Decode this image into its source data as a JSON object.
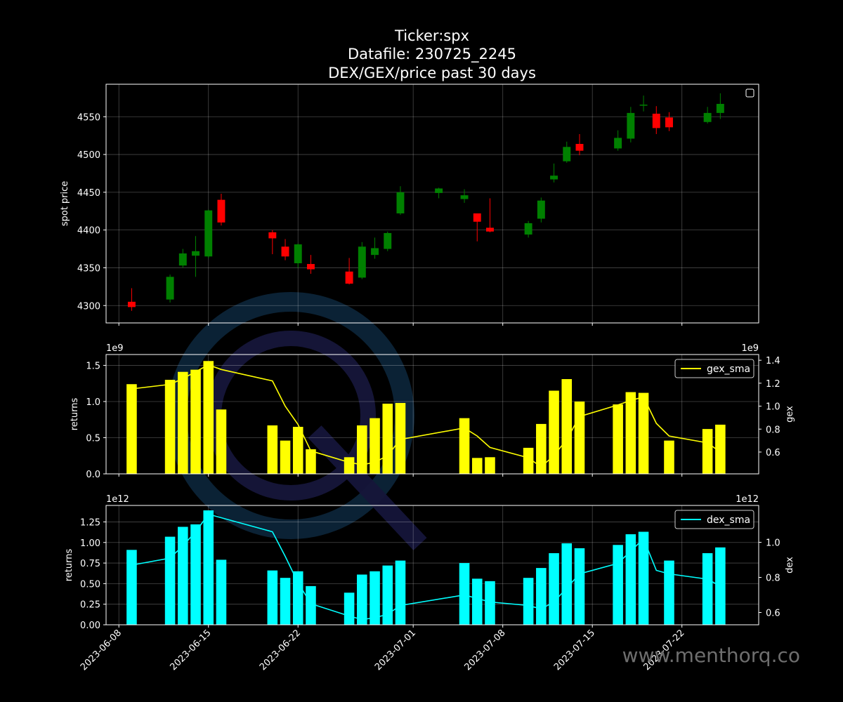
{
  "chart_data": {
    "title_lines": [
      "Ticker:spx",
      "Datafile: 230725_2245",
      "DEX/GEX/price past 30 days"
    ],
    "watermark": "www.menthorq.co",
    "x_ticks": [
      "2023-06-08",
      "2023-06-15",
      "2023-06-22",
      "2023-07-01",
      "2023-07-08",
      "2023-07-15",
      "2023-07-22"
    ],
    "x_domain": [
      "2023-06-07",
      "2023-07-28"
    ],
    "panels": [
      {
        "type": "candlestick",
        "ylabel": "spot price",
        "ylim": [
          4277,
          4593
        ],
        "yticks": [
          4300,
          4350,
          4400,
          4450,
          4500,
          4550
        ],
        "legend": "top-right (empty)",
        "up_color": "#008000",
        "down_color": "#ff0000",
        "candles": [
          {
            "date": "2023-06-09",
            "open": 4305,
            "close": 4298,
            "high": 4323,
            "low": 4293
          },
          {
            "date": "2023-06-12",
            "open": 4308,
            "close": 4338,
            "high": 4341,
            "low": 4304
          },
          {
            "date": "2023-06-13",
            "open": 4353,
            "close": 4369,
            "high": 4375,
            "low": 4350
          },
          {
            "date": "2023-06-14",
            "open": 4366,
            "close": 4372,
            "high": 4392,
            "low": 4338
          },
          {
            "date": "2023-06-15",
            "open": 4365,
            "close": 4426,
            "high": 4427,
            "low": 4363
          },
          {
            "date": "2023-06-16",
            "open": 4440,
            "close": 4410,
            "high": 4448,
            "low": 4406
          },
          {
            "date": "2023-06-20",
            "open": 4397,
            "close": 4389,
            "high": 4400,
            "low": 4368
          },
          {
            "date": "2023-06-21",
            "open": 4378,
            "close": 4365,
            "high": 4388,
            "low": 4360
          },
          {
            "date": "2023-06-22",
            "open": 4356,
            "close": 4381,
            "high": 4382,
            "low": 4350
          },
          {
            "date": "2023-06-23",
            "open": 4355,
            "close": 4348,
            "high": 4367,
            "low": 4342
          },
          {
            "date": "2023-06-26",
            "open": 4345,
            "close": 4329,
            "high": 4363,
            "low": 4328
          },
          {
            "date": "2023-06-27",
            "open": 4337,
            "close": 4378,
            "high": 4384,
            "low": 4335
          },
          {
            "date": "2023-06-28",
            "open": 4367,
            "close": 4376,
            "high": 4390,
            "low": 4362
          },
          {
            "date": "2023-06-29",
            "open": 4375,
            "close": 4396,
            "high": 4398,
            "low": 4372
          },
          {
            "date": "2023-06-30",
            "open": 4422,
            "close": 4450,
            "high": 4458,
            "low": 4420
          },
          {
            "date": "2023-07-03",
            "open": 4449,
            "close": 4455,
            "high": 4456,
            "low": 4442
          },
          {
            "date": "2023-07-05",
            "open": 4441,
            "close": 4446,
            "high": 4454,
            "low": 4436
          },
          {
            "date": "2023-07-06",
            "open": 4422,
            "close": 4411,
            "high": 4422,
            "low": 4385
          },
          {
            "date": "2023-07-07",
            "open": 4403,
            "close": 4398,
            "high": 4442,
            "low": 4397
          },
          {
            "date": "2023-07-10",
            "open": 4394,
            "close": 4409,
            "high": 4412,
            "low": 4390
          },
          {
            "date": "2023-07-11",
            "open": 4415,
            "close": 4439,
            "high": 4443,
            "low": 4410
          },
          {
            "date": "2023-07-12",
            "open": 4467,
            "close": 4472,
            "high": 4488,
            "low": 4463
          },
          {
            "date": "2023-07-13",
            "open": 4491,
            "close": 4510,
            "high": 4517,
            "low": 4489
          },
          {
            "date": "2023-07-14",
            "open": 4514,
            "close": 4505,
            "high": 4527,
            "low": 4499
          },
          {
            "date": "2023-07-17",
            "open": 4508,
            "close": 4522,
            "high": 4532,
            "low": 4505
          },
          {
            "date": "2023-07-18",
            "open": 4521,
            "close": 4555,
            "high": 4563,
            "low": 4516
          },
          {
            "date": "2023-07-19",
            "open": 4565,
            "close": 4566,
            "high": 4578,
            "low": 4557
          },
          {
            "date": "2023-07-20",
            "open": 4554,
            "close": 4535,
            "high": 4564,
            "low": 4527
          },
          {
            "date": "2023-07-21",
            "open": 4549,
            "close": 4536,
            "high": 4556,
            "low": 4531
          },
          {
            "date": "2023-07-24",
            "open": 4543,
            "close": 4555,
            "high": 4563,
            "low": 4541
          },
          {
            "date": "2023-07-25",
            "open": 4555,
            "close": 4567,
            "high": 4581,
            "low": 4547
          }
        ]
      },
      {
        "type": "bar+line",
        "ylabel": "returns",
        "y2label": "gex",
        "exponent_left": "1e9",
        "exponent_right": "1e9",
        "ylim": [
          0,
          1.65
        ],
        "yticks": [
          0.0,
          0.5,
          1.0,
          1.5
        ],
        "y2lim": [
          0.41,
          1.45
        ],
        "y2ticks": [
          0.6,
          0.8,
          1.0,
          1.2,
          1.4
        ],
        "bar_color": "#ffff00",
        "line_color": "#ffff00",
        "series_name": "gex_sma",
        "legend": "top-right",
        "bars": [
          {
            "date": "2023-06-09",
            "value": 1.24
          },
          {
            "date": "2023-06-12",
            "value": 1.3
          },
          {
            "date": "2023-06-13",
            "value": 1.41
          },
          {
            "date": "2023-06-14",
            "value": 1.44
          },
          {
            "date": "2023-06-15",
            "value": 1.56
          },
          {
            "date": "2023-06-16",
            "value": 0.89
          },
          {
            "date": "2023-06-20",
            "value": 0.67
          },
          {
            "date": "2023-06-21",
            "value": 0.46
          },
          {
            "date": "2023-06-22",
            "value": 0.65
          },
          {
            "date": "2023-06-23",
            "value": 0.34
          },
          {
            "date": "2023-06-26",
            "value": 0.23
          },
          {
            "date": "2023-06-27",
            "value": 0.67
          },
          {
            "date": "2023-06-28",
            "value": 0.77
          },
          {
            "date": "2023-06-29",
            "value": 0.97
          },
          {
            "date": "2023-06-30",
            "value": 0.98
          },
          {
            "date": "2023-07-05",
            "value": 0.77
          },
          {
            "date": "2023-07-06",
            "value": 0.22
          },
          {
            "date": "2023-07-07",
            "value": 0.23
          },
          {
            "date": "2023-07-10",
            "value": 0.36
          },
          {
            "date": "2023-07-11",
            "value": 0.69
          },
          {
            "date": "2023-07-12",
            "value": 1.15
          },
          {
            "date": "2023-07-13",
            "value": 1.31
          },
          {
            "date": "2023-07-14",
            "value": 1.0
          },
          {
            "date": "2023-07-17",
            "value": 0.96
          },
          {
            "date": "2023-07-18",
            "value": 1.13
          },
          {
            "date": "2023-07-19",
            "value": 1.12
          },
          {
            "date": "2023-07-21",
            "value": 0.46
          },
          {
            "date": "2023-07-24",
            "value": 0.62
          },
          {
            "date": "2023-07-25",
            "value": 0.68
          }
        ],
        "line": [
          {
            "date": "2023-06-09",
            "value": 1.15
          },
          {
            "date": "2023-06-12",
            "value": 1.19
          },
          {
            "date": "2023-06-13",
            "value": 1.24
          },
          {
            "date": "2023-06-14",
            "value": 1.3
          },
          {
            "date": "2023-06-15",
            "value": 1.36
          },
          {
            "date": "2023-06-16",
            "value": 1.32
          },
          {
            "date": "2023-06-20",
            "value": 1.22
          },
          {
            "date": "2023-06-21",
            "value": 1.0
          },
          {
            "date": "2023-06-22",
            "value": 0.84
          },
          {
            "date": "2023-06-23",
            "value": 0.61
          },
          {
            "date": "2023-06-26",
            "value": 0.51
          },
          {
            "date": "2023-06-27",
            "value": 0.49
          },
          {
            "date": "2023-06-28",
            "value": 0.51
          },
          {
            "date": "2023-06-29",
            "value": 0.57
          },
          {
            "date": "2023-06-30",
            "value": 0.71
          },
          {
            "date": "2023-07-05",
            "value": 0.81
          },
          {
            "date": "2023-07-06",
            "value": 0.74
          },
          {
            "date": "2023-07-07",
            "value": 0.64
          },
          {
            "date": "2023-07-10",
            "value": 0.55
          },
          {
            "date": "2023-07-11",
            "value": 0.47
          },
          {
            "date": "2023-07-12",
            "value": 0.57
          },
          {
            "date": "2023-07-13",
            "value": 0.71
          },
          {
            "date": "2023-07-14",
            "value": 0.91
          },
          {
            "date": "2023-07-17",
            "value": 1.01
          },
          {
            "date": "2023-07-18",
            "value": 1.05
          },
          {
            "date": "2023-07-19",
            "value": 1.08
          },
          {
            "date": "2023-07-20",
            "value": 0.85
          },
          {
            "date": "2023-07-21",
            "value": 0.74
          },
          {
            "date": "2023-07-24",
            "value": 0.68
          },
          {
            "date": "2023-07-25",
            "value": 0.6
          }
        ]
      },
      {
        "type": "bar+line",
        "ylabel": "returns",
        "y2label": "dex",
        "exponent_left": "1e12",
        "exponent_right": "1e12",
        "ylim": [
          0,
          1.45
        ],
        "yticks": [
          0.0,
          0.25,
          0.5,
          0.75,
          1.0,
          1.25
        ],
        "y2lim": [
          0.53,
          1.21
        ],
        "y2ticks": [
          0.6,
          0.8,
          1.0
        ],
        "bar_color": "#00ffff",
        "line_color": "#00ffff",
        "series_name": "dex_sma",
        "legend": "top-right",
        "bars": [
          {
            "date": "2023-06-09",
            "value": 0.91
          },
          {
            "date": "2023-06-12",
            "value": 1.07
          },
          {
            "date": "2023-06-13",
            "value": 1.19
          },
          {
            "date": "2023-06-14",
            "value": 1.22
          },
          {
            "date": "2023-06-15",
            "value": 1.39
          },
          {
            "date": "2023-06-16",
            "value": 0.79
          },
          {
            "date": "2023-06-20",
            "value": 0.66
          },
          {
            "date": "2023-06-21",
            "value": 0.57
          },
          {
            "date": "2023-06-22",
            "value": 0.65
          },
          {
            "date": "2023-06-23",
            "value": 0.47
          },
          {
            "date": "2023-06-26",
            "value": 0.39
          },
          {
            "date": "2023-06-27",
            "value": 0.61
          },
          {
            "date": "2023-06-28",
            "value": 0.65
          },
          {
            "date": "2023-06-29",
            "value": 0.72
          },
          {
            "date": "2023-06-30",
            "value": 0.78
          },
          {
            "date": "2023-07-05",
            "value": 0.75
          },
          {
            "date": "2023-07-06",
            "value": 0.56
          },
          {
            "date": "2023-07-07",
            "value": 0.53
          },
          {
            "date": "2023-07-10",
            "value": 0.57
          },
          {
            "date": "2023-07-11",
            "value": 0.69
          },
          {
            "date": "2023-07-12",
            "value": 0.87
          },
          {
            "date": "2023-07-13",
            "value": 0.99
          },
          {
            "date": "2023-07-14",
            "value": 0.93
          },
          {
            "date": "2023-07-17",
            "value": 0.97
          },
          {
            "date": "2023-07-18",
            "value": 1.1
          },
          {
            "date": "2023-07-19",
            "value": 1.13
          },
          {
            "date": "2023-07-21",
            "value": 0.78
          },
          {
            "date": "2023-07-24",
            "value": 0.87
          },
          {
            "date": "2023-07-25",
            "value": 0.94
          }
        ],
        "line": [
          {
            "date": "2023-06-09",
            "value": 0.87
          },
          {
            "date": "2023-06-12",
            "value": 0.91
          },
          {
            "date": "2023-06-13",
            "value": 0.98
          },
          {
            "date": "2023-06-14",
            "value": 1.06
          },
          {
            "date": "2023-06-15",
            "value": 1.16
          },
          {
            "date": "2023-06-16",
            "value": 1.14
          },
          {
            "date": "2023-06-20",
            "value": 1.06
          },
          {
            "date": "2023-06-21",
            "value": 0.92
          },
          {
            "date": "2023-06-22",
            "value": 0.77
          },
          {
            "date": "2023-06-23",
            "value": 0.65
          },
          {
            "date": "2023-06-26",
            "value": 0.58
          },
          {
            "date": "2023-06-27",
            "value": 0.56
          },
          {
            "date": "2023-06-28",
            "value": 0.57
          },
          {
            "date": "2023-06-29",
            "value": 0.59
          },
          {
            "date": "2023-06-30",
            "value": 0.64
          },
          {
            "date": "2023-07-05",
            "value": 0.7
          },
          {
            "date": "2023-07-06",
            "value": 0.68
          },
          {
            "date": "2023-07-07",
            "value": 0.66
          },
          {
            "date": "2023-07-10",
            "value": 0.64
          },
          {
            "date": "2023-07-11",
            "value": 0.62
          },
          {
            "date": "2023-07-12",
            "value": 0.66
          },
          {
            "date": "2023-07-13",
            "value": 0.74
          },
          {
            "date": "2023-07-14",
            "value": 0.82
          },
          {
            "date": "2023-07-17",
            "value": 0.88
          },
          {
            "date": "2023-07-18",
            "value": 0.95
          },
          {
            "date": "2023-07-19",
            "value": 1.02
          },
          {
            "date": "2023-07-20",
            "value": 0.84
          },
          {
            "date": "2023-07-21",
            "value": 0.82
          },
          {
            "date": "2023-07-24",
            "value": 0.79
          },
          {
            "date": "2023-07-25",
            "value": 0.75
          }
        ]
      }
    ]
  }
}
